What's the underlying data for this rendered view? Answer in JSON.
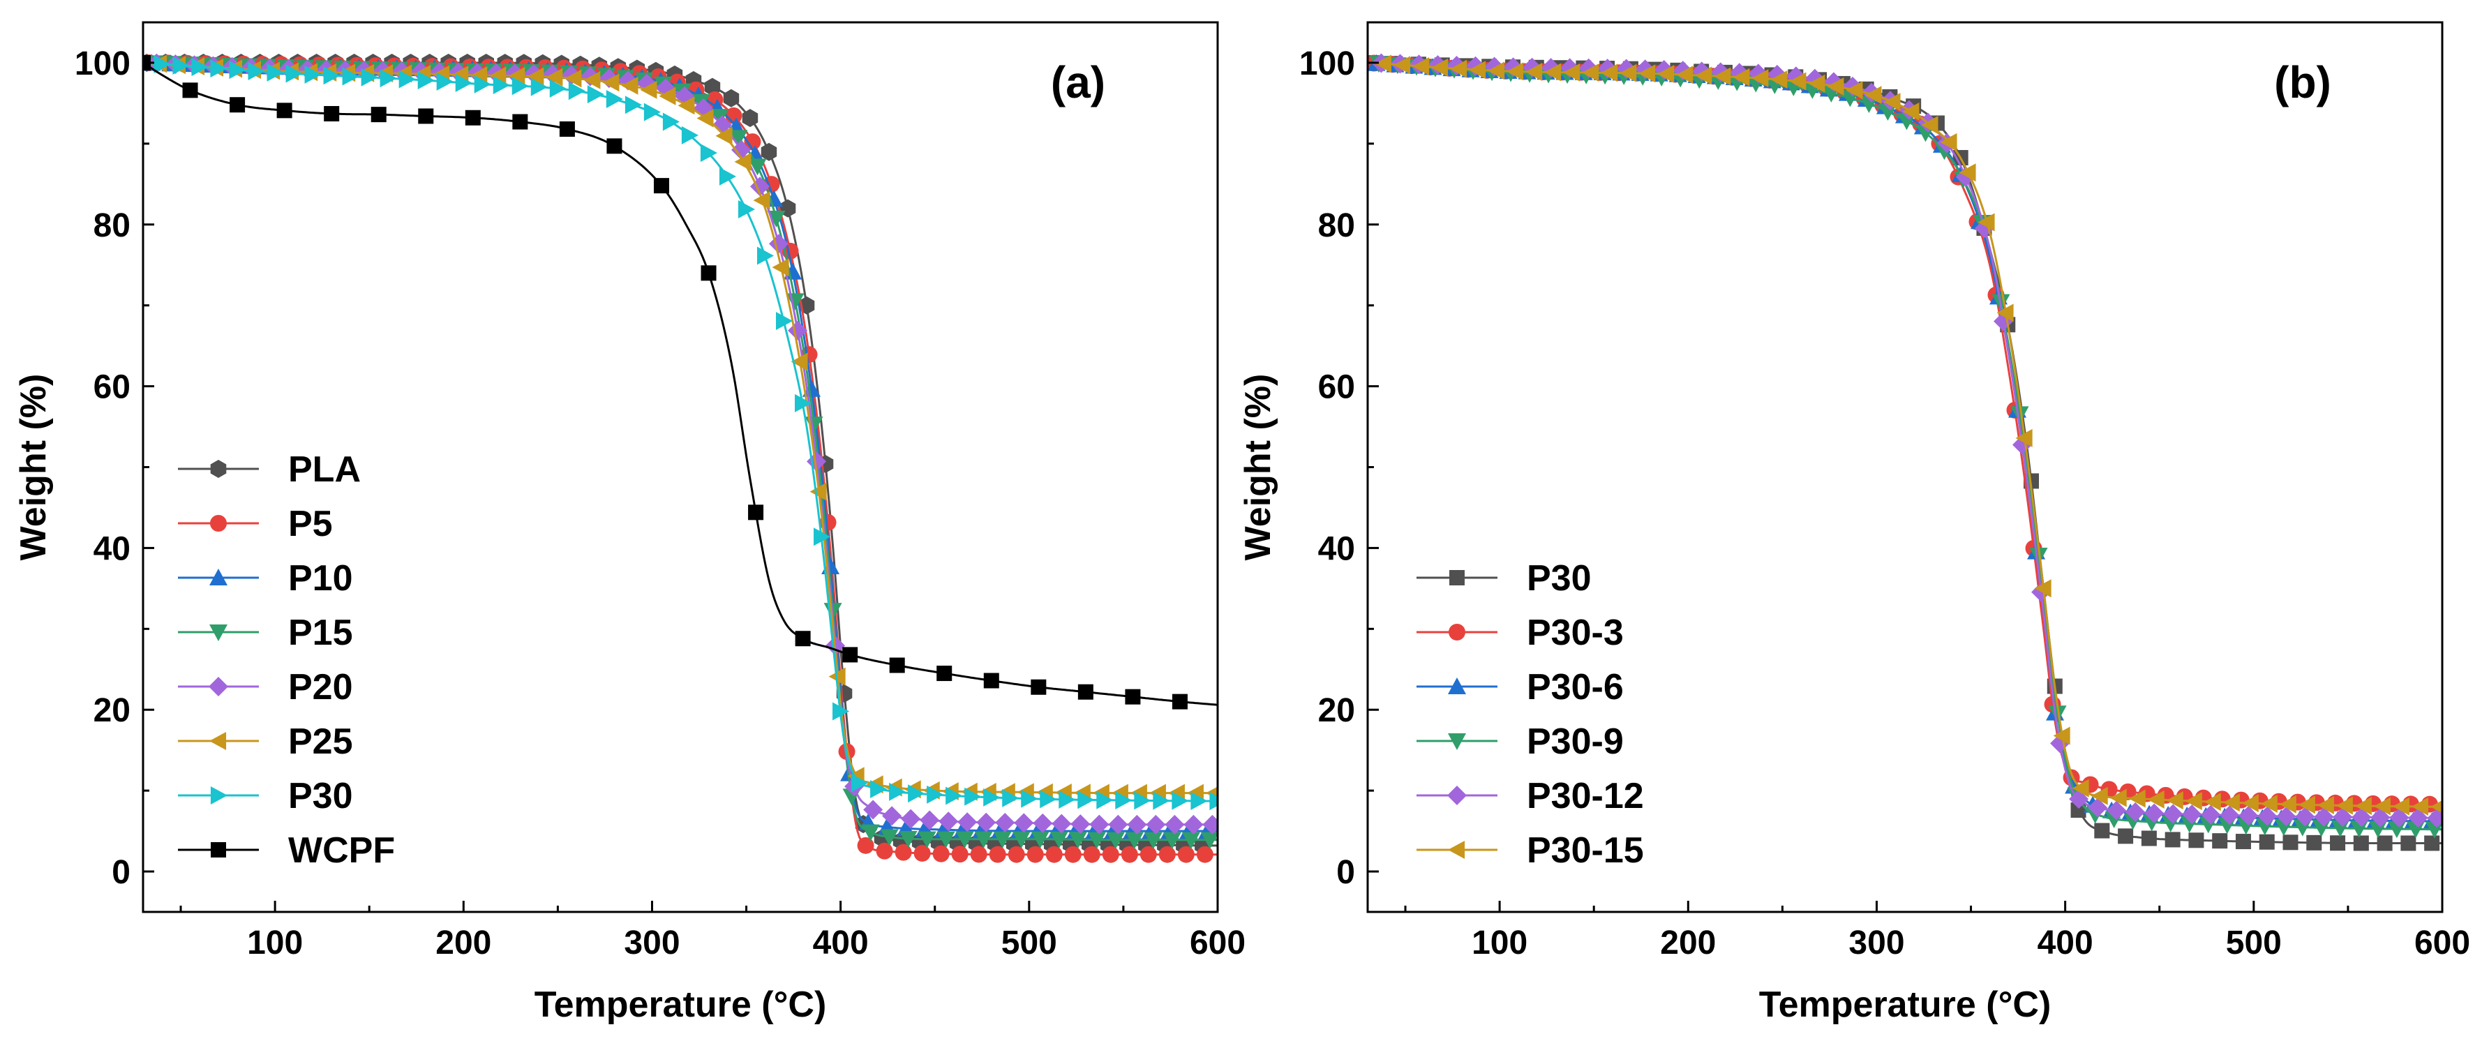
{
  "chart_data": [
    {
      "type": "line",
      "panel_label": "(a)",
      "xlabel": "Temperature (°C)",
      "ylabel": "Weight (%)",
      "xlim": [
        30,
        600
      ],
      "ylim": [
        -5,
        105
      ],
      "xticks": [
        100,
        200,
        300,
        400,
        500,
        600
      ],
      "yticks": [
        0,
        20,
        40,
        60,
        80,
        100
      ],
      "legend_position": "left-middle",
      "series": [
        {
          "name": "PLA",
          "color": "#505050",
          "marker": "hexagon",
          "x": [
            30,
            100,
            200,
            280,
            320,
            345,
            360,
            372,
            382,
            390,
            396,
            402,
            408,
            415,
            425,
            450,
            500,
            550,
            600
          ],
          "y": [
            100,
            100,
            100,
            99.5,
            98,
            95,
            90,
            82,
            70,
            55,
            40,
            22,
            9,
            5,
            4,
            3.6,
            3.4,
            3.3,
            3.2
          ]
        },
        {
          "name": "P5",
          "color": "#e8413c",
          "marker": "circle",
          "x": [
            30,
            100,
            200,
            280,
            320,
            345,
            360,
            372,
            382,
            390,
            396,
            402,
            408,
            415,
            425,
            450,
            500,
            550,
            600
          ],
          "y": [
            100,
            99.8,
            99.5,
            99,
            97,
            93,
            87,
            78,
            66,
            51,
            36,
            18,
            6,
            3,
            2.5,
            2.2,
            2.1,
            2.1,
            2.1
          ]
        },
        {
          "name": "P10",
          "color": "#1f6fd0",
          "marker": "triangle-up",
          "x": [
            30,
            100,
            200,
            280,
            320,
            345,
            360,
            372,
            382,
            390,
            396,
            402,
            408,
            415,
            425,
            450,
            500,
            550,
            600
          ],
          "y": [
            100,
            99.5,
            99.2,
            98.5,
            96.5,
            92,
            86,
            77,
            64,
            49,
            34,
            17,
            8,
            6,
            5.5,
            5.2,
            5,
            5,
            5
          ]
        },
        {
          "name": "P15",
          "color": "#2f9e6a",
          "marker": "triangle-down",
          "x": [
            30,
            100,
            200,
            280,
            320,
            345,
            360,
            372,
            382,
            390,
            396,
            402,
            408,
            415,
            425,
            450,
            500,
            550,
            600
          ],
          "y": [
            100,
            99.5,
            99,
            98.3,
            96,
            91,
            85,
            75,
            62,
            47,
            32,
            16,
            7,
            5,
            4.3,
            4,
            4,
            3.9,
            3.9
          ]
        },
        {
          "name": "P20",
          "color": "#a266dc",
          "marker": "diamond",
          "x": [
            30,
            100,
            200,
            280,
            320,
            345,
            360,
            372,
            382,
            390,
            396,
            402,
            408,
            415,
            425,
            450,
            500,
            550,
            600
          ],
          "y": [
            100,
            99.3,
            98.8,
            98,
            95.5,
            90,
            83,
            73,
            60,
            45,
            31,
            16,
            10,
            8,
            7,
            6.3,
            6,
            5.8,
            5.8
          ]
        },
        {
          "name": "P25",
          "color": "#c8961a",
          "marker": "triangle-left",
          "x": [
            30,
            100,
            200,
            280,
            320,
            345,
            360,
            372,
            382,
            390,
            396,
            402,
            408,
            415,
            425,
            450,
            500,
            550,
            600
          ],
          "y": [
            100,
            99,
            98.5,
            97.5,
            94.5,
            89,
            82,
            71,
            58,
            44,
            30,
            17,
            12,
            11,
            10.5,
            10,
            9.8,
            9.7,
            9.7
          ]
        },
        {
          "name": "P30",
          "color": "#19c3cf",
          "marker": "triangle-right",
          "x": [
            30,
            100,
            200,
            280,
            320,
            345,
            360,
            372,
            382,
            390,
            396,
            402,
            408,
            415,
            425,
            450,
            500,
            550,
            600
          ],
          "y": [
            100,
            98.8,
            97.5,
            95.5,
            91,
            84,
            76,
            66,
            55,
            41,
            28,
            16,
            11.5,
            10.5,
            10,
            9.5,
            9,
            8.8,
            8.7
          ]
        },
        {
          "name": "WCPF",
          "color": "#000000",
          "marker": "square",
          "x": [
            30,
            40,
            55,
            80,
            105,
            130,
            155,
            180,
            205,
            230,
            255,
            280,
            305,
            318,
            330,
            342,
            352,
            362,
            370,
            380,
            395,
            405,
            430,
            455,
            480,
            505,
            530,
            555,
            580,
            600
          ],
          "y": [
            100,
            98.5,
            96.6,
            94.8,
            94.1,
            93.7,
            93.6,
            93.4,
            93.2,
            92.7,
            91.8,
            89.7,
            84.8,
            80,
            74,
            63,
            48.5,
            36,
            31,
            28.8,
            27.6,
            26.8,
            25.5,
            24.5,
            23.6,
            22.8,
            22.2,
            21.6,
            21,
            20.6
          ]
        }
      ]
    },
    {
      "type": "line",
      "panel_label": "(b)",
      "xlabel": "Temperature (°C)",
      "ylabel": "Weight (%)",
      "xlim": [
        30,
        600
      ],
      "ylim": [
        -5,
        105
      ],
      "xticks": [
        100,
        200,
        300,
        400,
        500,
        600
      ],
      "yticks": [
        0,
        20,
        40,
        60,
        80,
        100
      ],
      "legend_position": "left-bottom",
      "series": [
        {
          "name": "P30",
          "color": "#505050",
          "marker": "square",
          "x": [
            30,
            100,
            200,
            280,
            310,
            330,
            345,
            360,
            370,
            380,
            388,
            395,
            402,
            410,
            420,
            440,
            480,
            520,
            560,
            600
          ],
          "y": [
            100,
            99.5,
            99,
            97.5,
            95.5,
            93,
            88,
            77,
            67,
            52,
            36,
            22,
            11,
            6.5,
            5,
            4.2,
            3.8,
            3.6,
            3.5,
            3.5
          ]
        },
        {
          "name": "P30-3",
          "color": "#e8413c",
          "marker": "circle",
          "x": [
            30,
            100,
            200,
            280,
            310,
            330,
            345,
            360,
            370,
            380,
            388,
            395,
            402,
            410,
            420,
            440,
            480,
            520,
            560,
            600
          ],
          "y": [
            100,
            99,
            98.5,
            96.5,
            94,
            91,
            85,
            75,
            62,
            46,
            31,
            18,
            12,
            11,
            10.3,
            9.7,
            9,
            8.6,
            8.4,
            8.3
          ]
        },
        {
          "name": "P30-6",
          "color": "#1f6fd0",
          "marker": "triangle-up",
          "x": [
            30,
            100,
            200,
            280,
            310,
            330,
            345,
            360,
            370,
            380,
            388,
            395,
            402,
            410,
            420,
            440,
            480,
            520,
            560,
            600
          ],
          "y": [
            100,
            99,
            98.5,
            96.5,
            94,
            91,
            86,
            76,
            64,
            48,
            33,
            19,
            12,
            9,
            7.8,
            7.2,
            6.8,
            6.5,
            6.3,
            6.2
          ]
        },
        {
          "name": "P30-9",
          "color": "#2f9e6a",
          "marker": "triangle-down",
          "x": [
            30,
            100,
            200,
            280,
            310,
            330,
            345,
            360,
            370,
            380,
            388,
            395,
            402,
            410,
            420,
            440,
            480,
            520,
            560,
            600
          ],
          "y": [
            100,
            98.8,
            98,
            96,
            93.5,
            90.5,
            86,
            77,
            65,
            50,
            35,
            21,
            12,
            8,
            6.8,
            6.2,
            5.8,
            5.5,
            5.3,
            5.2
          ]
        },
        {
          "name": "P30-12",
          "color": "#a266dc",
          "marker": "diamond",
          "x": [
            30,
            100,
            200,
            280,
            310,
            330,
            345,
            360,
            370,
            380,
            388,
            395,
            402,
            410,
            420,
            440,
            480,
            520,
            560,
            600
          ],
          "y": [
            100,
            99.5,
            99,
            97.5,
            95,
            92,
            87,
            77,
            64,
            48,
            33,
            19,
            11,
            8.5,
            7.8,
            7.3,
            7,
            6.8,
            6.7,
            6.6
          ]
        },
        {
          "name": "P30-15",
          "color": "#c8961a",
          "marker": "triangle-left",
          "x": [
            30,
            100,
            200,
            280,
            310,
            330,
            345,
            360,
            370,
            380,
            388,
            395,
            402,
            410,
            420,
            440,
            480,
            520,
            560,
            600
          ],
          "y": [
            100,
            99,
            98.5,
            97,
            95,
            92,
            88,
            79,
            67,
            51,
            36,
            22,
            13,
            10,
            9.3,
            9,
            8.6,
            8.3,
            8.1,
            8
          ]
        }
      ]
    }
  ]
}
